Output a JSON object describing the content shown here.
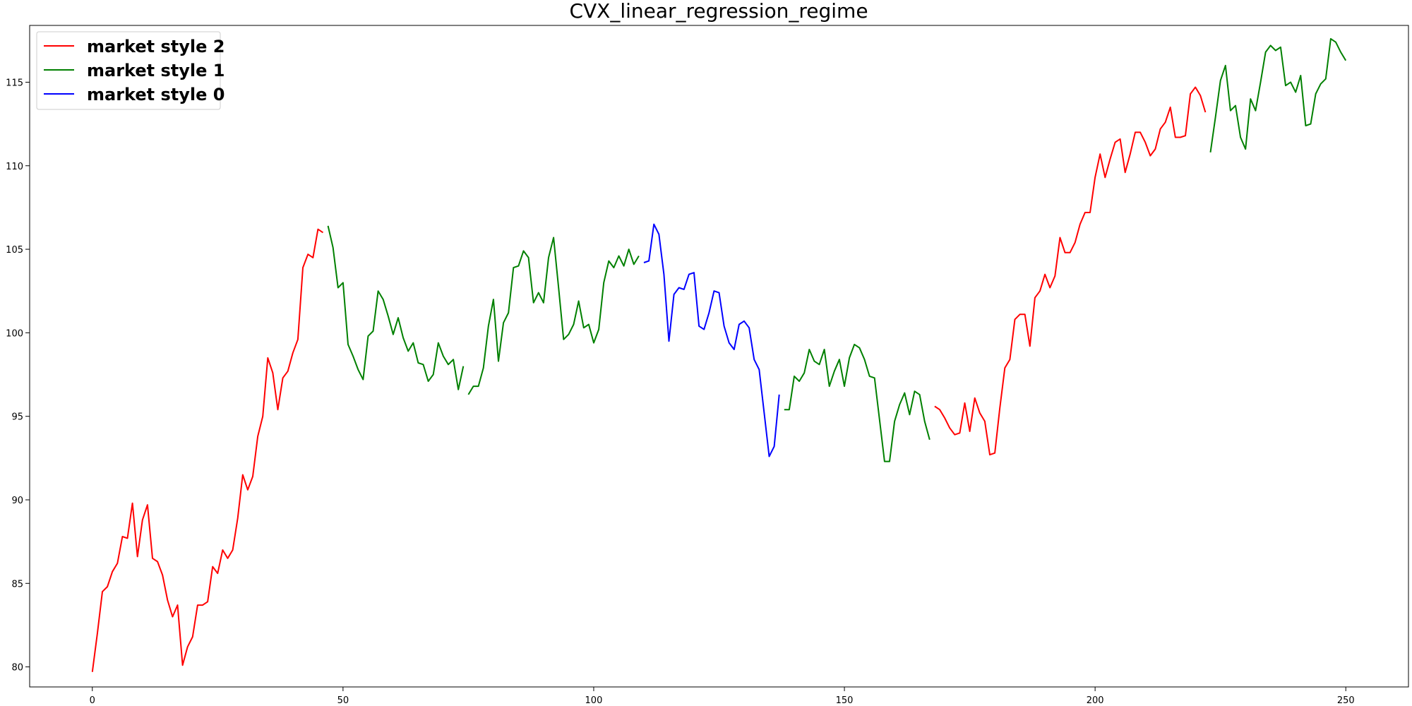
{
  "chart_data": {
    "type": "line",
    "title": "CVX_linear_regression_regime",
    "xlabel": "",
    "ylabel": "",
    "xlim": [
      -12.5,
      262.5
    ],
    "ylim": [
      78.8,
      118.4
    ],
    "xticks": [
      0,
      50,
      100,
      150,
      200,
      250
    ],
    "yticks": [
      80,
      85,
      90,
      95,
      100,
      105,
      110,
      115
    ],
    "grid": false,
    "legend_position": "top-left",
    "legend": [
      {
        "name": "market style 2",
        "color": "#ff0000"
      },
      {
        "name": "market style 1",
        "color": "#008000"
      },
      {
        "name": "market style 0",
        "color": "#0000ff"
      }
    ],
    "segments": [
      {
        "style": 2,
        "color": "#ff0000",
        "x_start": 0,
        "values": [
          79.7,
          82.0,
          84.5,
          84.8,
          85.7,
          86.2,
          87.8,
          87.7,
          89.8,
          86.6,
          88.8,
          89.7,
          86.5,
          86.3,
          85.5,
          84.0,
          83.0,
          83.7,
          80.1,
          81.2,
          81.8,
          83.7,
          83.7,
          83.9,
          86.0,
          85.6,
          87.0,
          86.5,
          87.0,
          88.9,
          91.5,
          90.6,
          91.4,
          93.8,
          95.0,
          98.5,
          97.6,
          95.4,
          97.3,
          97.7,
          98.8,
          99.6,
          103.9,
          104.7,
          104.5,
          106.2,
          106.0
        ]
      },
      {
        "style": 1,
        "color": "#008000",
        "x_start": 47,
        "values": [
          106.4,
          105.1,
          102.7,
          103.0,
          99.3,
          98.6,
          97.8,
          97.2,
          99.8,
          100.1,
          102.5,
          102.0,
          101.0,
          99.9,
          100.9,
          99.7,
          98.9,
          99.4,
          98.2,
          98.1,
          97.1,
          97.5,
          99.4,
          98.6,
          98.1,
          98.4,
          96.6,
          98.0
        ]
      },
      {
        "style": 1,
        "color": "#008000",
        "x_start": 75,
        "values": [
          96.3,
          96.8,
          96.8,
          97.9,
          100.4,
          102.0,
          98.3,
          100.6,
          101.2,
          103.9,
          104.0,
          104.9,
          104.5,
          101.8,
          102.4,
          101.8,
          104.5,
          105.7,
          102.7,
          99.6,
          99.9,
          100.5,
          101.9,
          100.3,
          100.5,
          99.4,
          100.2,
          103.0,
          104.3,
          103.9,
          104.6,
          104.0,
          105.0,
          104.1,
          104.6
        ]
      },
      {
        "style": 0,
        "color": "#0000ff",
        "x_start": 110,
        "values": [
          104.2,
          104.3,
          106.5,
          105.9,
          103.5,
          99.5,
          102.3,
          102.7,
          102.6,
          103.5,
          103.6,
          100.4,
          100.2,
          101.2,
          102.5,
          102.4,
          100.4,
          99.4,
          99.0,
          100.5,
          100.7,
          100.3,
          98.4,
          97.8,
          95.2,
          92.6,
          93.2,
          96.3
        ]
      },
      {
        "style": 1,
        "color": "#008000",
        "x_start": 138,
        "values": [
          95.4,
          95.4,
          97.4,
          97.1,
          97.6,
          99.0,
          98.3,
          98.1,
          99.0,
          96.8,
          97.7,
          98.4,
          96.8,
          98.5,
          99.3,
          99.1,
          98.4,
          97.4,
          97.3,
          94.8,
          92.3,
          92.3,
          94.7,
          95.7,
          96.4,
          95.1,
          96.5,
          96.3,
          94.7,
          93.6
        ]
      },
      {
        "style": 2,
        "color": "#ff0000",
        "x_start": 168,
        "values": [
          95.6,
          95.4,
          94.9,
          94.3,
          93.9,
          94.0,
          95.8,
          94.1,
          96.1,
          95.2,
          94.7,
          92.7,
          92.8,
          95.5,
          97.9,
          98.4,
          100.8,
          101.1,
          101.1,
          99.2,
          102.1,
          102.5,
          103.5,
          102.7,
          103.4,
          105.7,
          104.8,
          104.8,
          105.4,
          106.5,
          107.2,
          107.2,
          109.3,
          110.7,
          109.3,
          110.4,
          111.4,
          111.6,
          109.6,
          110.7,
          112.0,
          112.0,
          111.4,
          110.6,
          111.0,
          112.2,
          112.6,
          113.5,
          111.7,
          111.7,
          111.8,
          114.3,
          114.7,
          114.2,
          113.2
        ]
      },
      {
        "style": 1,
        "color": "#008000",
        "x_start": 223,
        "values": [
          110.8,
          112.9,
          115.1,
          116.0,
          113.3,
          113.6,
          111.7,
          111.0,
          114.0,
          113.3,
          115.0,
          116.8,
          117.2,
          116.9,
          117.1,
          114.8,
          115.0,
          114.4,
          115.4,
          112.4,
          112.5,
          114.3,
          114.9,
          115.2,
          117.6,
          117.4,
          116.8,
          116.3
        ]
      }
    ]
  }
}
